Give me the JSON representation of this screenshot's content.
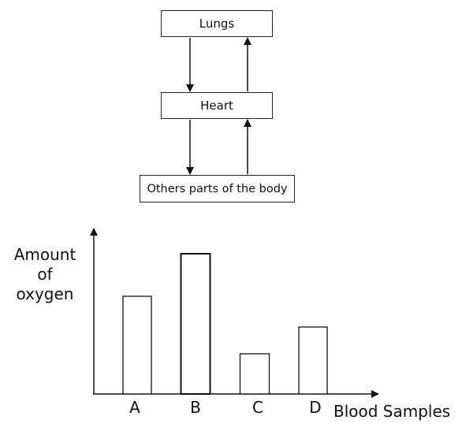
{
  "diagram": {
    "lungs_label": "Lungs",
    "heart_label": "Heart",
    "body_label": "Others parts of the body"
  },
  "chart_data": {
    "type": "bar",
    "categories": [
      "A",
      "B",
      "C",
      "D"
    ],
    "values": [
      124,
      178,
      51,
      85
    ],
    "ylabel_lines": [
      "Amount",
      "of",
      "oxygen"
    ],
    "xlabel": "Blood Samples",
    "ylim": [
      0,
      210
    ],
    "grid": false,
    "y_ticks_shown": false
  }
}
